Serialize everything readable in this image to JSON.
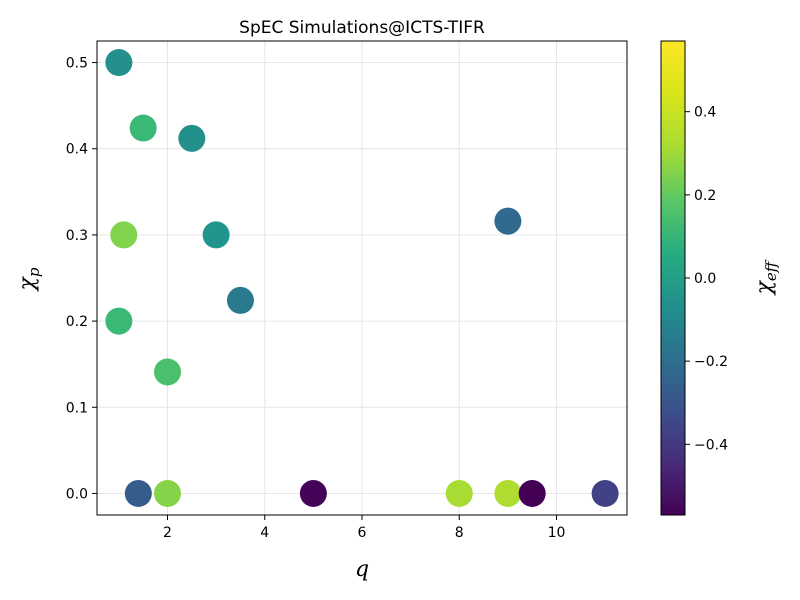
{
  "chart_data": {
    "type": "scatter",
    "title": "SpEC Simulations@ICTS-TIFR",
    "xlabel": "q",
    "ylabel": "χ",
    "ylabel_sub": "p",
    "colorbar_label": "χ",
    "colorbar_label_sub": "eff",
    "colormap": "viridis",
    "xlim": [
      0.55,
      11.45
    ],
    "ylim": [
      -0.025,
      0.525
    ],
    "clim": [
      -0.57,
      0.57
    ],
    "xticks": [
      2,
      4,
      6,
      8,
      10
    ],
    "yticks": [
      0.0,
      0.1,
      0.2,
      0.3,
      0.4,
      0.5
    ],
    "cticks": [
      -0.4,
      -0.2,
      0.0,
      0.2,
      0.4
    ],
    "xtick_labels": [
      "2",
      "4",
      "6",
      "8",
      "10"
    ],
    "ytick_labels": [
      "0.0",
      "0.1",
      "0.2",
      "0.3",
      "0.4",
      "0.5"
    ],
    "ctick_labels": [
      "−0.4",
      "−0.2",
      "0.0",
      "0.2",
      "0.4"
    ],
    "grid": true,
    "points": [
      {
        "x": 1.0,
        "y": 0.5,
        "c": 0.0
      },
      {
        "x": 1.5,
        "y": 0.424,
        "c": 0.2
      },
      {
        "x": 2.5,
        "y": 0.412,
        "c": 0.0
      },
      {
        "x": 1.1,
        "y": 0.3,
        "c": 0.35
      },
      {
        "x": 3.0,
        "y": 0.3,
        "c": 0.02
      },
      {
        "x": 3.5,
        "y": 0.224,
        "c": -0.1
      },
      {
        "x": 1.0,
        "y": 0.2,
        "c": 0.2
      },
      {
        "x": 2.0,
        "y": 0.141,
        "c": 0.24
      },
      {
        "x": 9.0,
        "y": 0.316,
        "c": -0.18
      },
      {
        "x": 1.4,
        "y": 0.0,
        "c": -0.24
      },
      {
        "x": 2.0,
        "y": 0.0,
        "c": 0.36
      },
      {
        "x": 5.0,
        "y": 0.0,
        "c": -0.56
      },
      {
        "x": 8.0,
        "y": 0.0,
        "c": 0.42
      },
      {
        "x": 9.0,
        "y": 0.0,
        "c": 0.43
      },
      {
        "x": 9.5,
        "y": 0.0,
        "c": -0.57
      },
      {
        "x": 11.0,
        "y": 0.0,
        "c": -0.35
      }
    ]
  }
}
